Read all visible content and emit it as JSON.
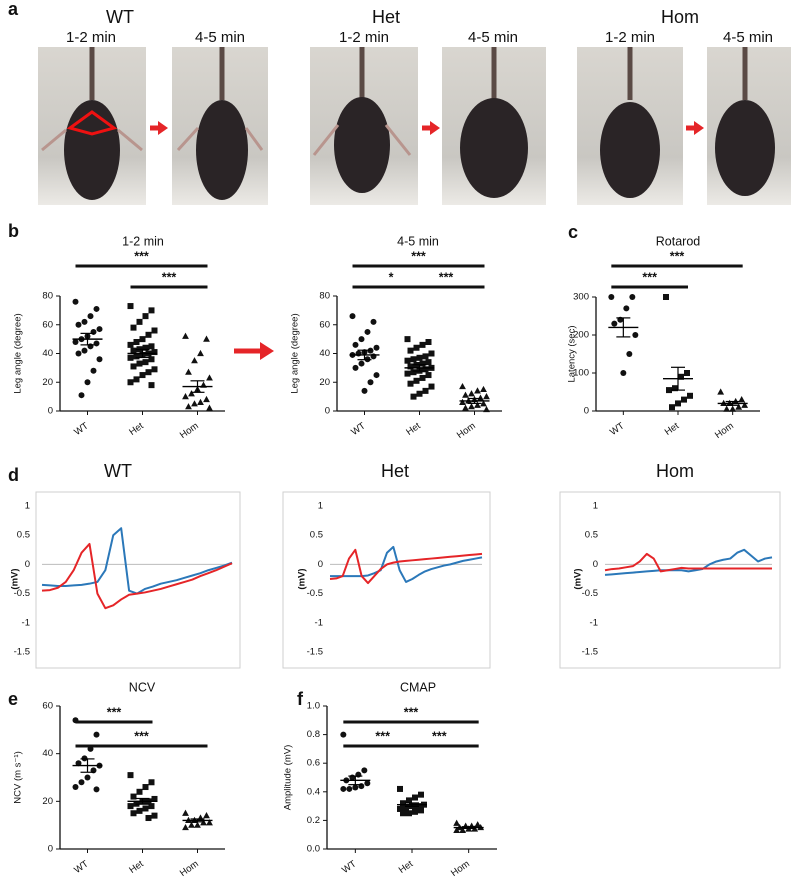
{
  "panel_a": {
    "letter": "a",
    "groups": [
      {
        "title": "WT",
        "times": [
          "1-2 min",
          "4-5 min"
        ]
      },
      {
        "title": "Het",
        "times": [
          "1-2 min",
          "4-5 min"
        ]
      },
      {
        "title": "Hom",
        "times": [
          "1-2 min",
          "4-5 min"
        ]
      }
    ]
  },
  "chart_data": [
    {
      "type": "dot",
      "panel": "b",
      "title": "1-2 min",
      "y_label": "Leg angle (degree)",
      "categories": [
        "WT",
        "Het",
        "Hom"
      ],
      "ylim": [
        0,
        80
      ],
      "yticks": [
        0,
        20,
        40,
        60,
        80
      ],
      "color": "#000000",
      "groups": [
        {
          "marker": "circle",
          "mean": 50,
          "sem": 4,
          "values": [
            76,
            71,
            66,
            62,
            60,
            57,
            55,
            52,
            50,
            48,
            47,
            45,
            42,
            40,
            36,
            28,
            20,
            11
          ]
        },
        {
          "marker": "square",
          "mean": 40,
          "sem": 2.8,
          "values": [
            73,
            70,
            66,
            62,
            58,
            56,
            53,
            50,
            48,
            46,
            45,
            44,
            43,
            42,
            41,
            40,
            39,
            38,
            37,
            36,
            34,
            33,
            31,
            29,
            27,
            25,
            22,
            20,
            18
          ]
        },
        {
          "marker": "triangle",
          "mean": 17,
          "sem": 4,
          "values": [
            52,
            50,
            40,
            35,
            27,
            23,
            18,
            15,
            12,
            10,
            8,
            6,
            5,
            3,
            2
          ]
        }
      ],
      "significance": [
        {
          "from": "WT",
          "to": "Hom",
          "label": "***"
        },
        {
          "from": "Het",
          "to": "Hom",
          "label": "***"
        }
      ]
    },
    {
      "type": "dot",
      "title": "4-5 min",
      "y_label": "Leg angle (degree)",
      "categories": [
        "WT",
        "Het",
        "Hom"
      ],
      "ylim": [
        0,
        80
      ],
      "yticks": [
        0,
        20,
        40,
        60,
        80
      ],
      "color": "#000000",
      "groups": [
        {
          "marker": "circle",
          "mean": 39,
          "sem": 3.3,
          "values": [
            66,
            62,
            55,
            50,
            46,
            44,
            42,
            41,
            40,
            39,
            38,
            36,
            33,
            30,
            25,
            20,
            14
          ]
        },
        {
          "marker": "square",
          "mean": 30,
          "sem": 2.2,
          "values": [
            50,
            48,
            46,
            44,
            42,
            40,
            38,
            37,
            36,
            35,
            34,
            33,
            32,
            31,
            30,
            29,
            28,
            27,
            26,
            25,
            23,
            21,
            19,
            17,
            14,
            12,
            10
          ]
        },
        {
          "marker": "triangle",
          "mean": 7,
          "sem": 1.7,
          "values": [
            17,
            15,
            14,
            12,
            11,
            10,
            9,
            8,
            7,
            6,
            5,
            4,
            3,
            2,
            1
          ]
        }
      ],
      "significance": [
        {
          "from": "WT",
          "to": "Hom",
          "label": "***"
        },
        {
          "from": "WT",
          "to": "Het",
          "label": "*"
        },
        {
          "from": "Het",
          "to": "Hom",
          "label": "***"
        }
      ]
    },
    {
      "type": "dot",
      "panel": "c",
      "title": "Rotarod",
      "y_label": "Latency (sec)",
      "categories": [
        "WT",
        "Het",
        "Hom"
      ],
      "ylim": [
        0,
        300
      ],
      "yticks": [
        0,
        100,
        200,
        300
      ],
      "color": "#000000",
      "groups": [
        {
          "marker": "circle",
          "mean": 220,
          "sem": 25,
          "values": [
            300,
            300,
            270,
            240,
            230,
            200,
            150,
            100
          ]
        },
        {
          "marker": "square",
          "mean": 85,
          "sem": 30,
          "values": [
            300,
            100,
            90,
            60,
            55,
            40,
            30,
            20,
            10
          ]
        },
        {
          "marker": "triangle",
          "mean": 20,
          "sem": 5,
          "values": [
            50,
            30,
            25,
            20,
            20,
            15,
            10,
            5,
            5
          ]
        }
      ],
      "significance": [
        {
          "from": "WT",
          "to": "Hom",
          "label": "***"
        },
        {
          "from": "WT",
          "to": "Het",
          "label": "***"
        }
      ]
    },
    {
      "type": "line",
      "panel": "d",
      "title": "WT",
      "y_label": "(mV)",
      "ylim": [
        -1.5,
        1
      ],
      "yticks": [
        -1.5,
        -1,
        -0.5,
        0,
        0.5,
        1
      ],
      "series": [
        {
          "color": "#2b78b9",
          "values": [
            -0.35,
            -0.36,
            -0.37,
            -0.37,
            -0.36,
            -0.35,
            -0.33,
            -0.3,
            -0.1,
            0.5,
            0.62,
            -0.45,
            -0.5,
            -0.42,
            -0.38,
            -0.33,
            -0.3,
            -0.27,
            -0.23,
            -0.19,
            -0.15,
            -0.1,
            -0.06,
            -0.02,
            0.03
          ]
        },
        {
          "color": "#e52528",
          "values": [
            -0.45,
            -0.44,
            -0.4,
            -0.3,
            -0.1,
            0.2,
            0.35,
            -0.5,
            -0.75,
            -0.7,
            -0.6,
            -0.52,
            -0.5,
            -0.48,
            -0.45,
            -0.42,
            -0.38,
            -0.34,
            -0.3,
            -0.26,
            -0.2,
            -0.15,
            -0.1,
            -0.04,
            0.02
          ]
        }
      ]
    },
    {
      "type": "line",
      "title": "Het",
      "y_label": "(mV)",
      "ylim": [
        -1.5,
        1
      ],
      "yticks": [
        -1.5,
        -1,
        -0.5,
        0,
        0.5,
        1
      ],
      "series": [
        {
          "color": "#2b78b9",
          "values": [
            -0.2,
            -0.2,
            -0.2,
            -0.2,
            -0.2,
            -0.2,
            -0.19,
            -0.15,
            -0.1,
            0.2,
            0.3,
            -0.1,
            -0.3,
            -0.25,
            -0.18,
            -0.12,
            -0.08,
            -0.05,
            -0.02,
            0,
            0.03,
            0.06,
            0.08,
            0.1,
            0.12
          ]
        },
        {
          "color": "#e52528",
          "values": [
            -0.25,
            -0.24,
            -0.2,
            0.1,
            0.25,
            -0.2,
            -0.32,
            -0.2,
            -0.08,
            0,
            0.03,
            0.05,
            0.06,
            0.07,
            0.08,
            0.09,
            0.1,
            0.11,
            0.12,
            0.13,
            0.14,
            0.15,
            0.16,
            0.17,
            0.18
          ]
        }
      ]
    },
    {
      "type": "line",
      "title": "Hom",
      "y_label": "(mV)",
      "ylim": [
        -1.5,
        1
      ],
      "yticks": [
        -1.5,
        -1,
        -0.5,
        0,
        0.5,
        1
      ],
      "series": [
        {
          "color": "#2b78b9",
          "values": [
            -0.18,
            -0.17,
            -0.16,
            -0.15,
            -0.14,
            -0.13,
            -0.12,
            -0.11,
            -0.1,
            -0.1,
            -0.1,
            -0.1,
            -0.12,
            -0.1,
            -0.08,
            0,
            0.05,
            0.08,
            0.1,
            0.2,
            0.25,
            0.15,
            0.05,
            0.1,
            0.12
          ]
        },
        {
          "color": "#e52528",
          "values": [
            -0.1,
            -0.08,
            -0.07,
            -0.05,
            -0.03,
            0.05,
            0.18,
            0.1,
            -0.12,
            -0.1,
            -0.08,
            -0.06,
            -0.07,
            -0.07,
            -0.07,
            -0.07,
            -0.07,
            -0.07,
            -0.07,
            -0.07,
            -0.07,
            -0.07,
            -0.07,
            -0.07,
            -0.07
          ]
        }
      ]
    },
    {
      "type": "dot",
      "panel": "e",
      "title": "NCV",
      "y_label": "NCV (m s⁻¹)",
      "categories": [
        "WT",
        "Het",
        "Hom"
      ],
      "ylim": [
        0,
        60
      ],
      "yticks": [
        0,
        20,
        40,
        60
      ],
      "color": "#000000",
      "groups": [
        {
          "marker": "circle",
          "mean": 35,
          "sem": 2.8,
          "values": [
            54,
            48,
            42,
            38,
            36,
            35,
            33,
            30,
            28,
            26,
            25
          ]
        },
        {
          "marker": "square",
          "mean": 20,
          "sem": 1.2,
          "values": [
            31,
            28,
            26,
            24,
            22,
            21,
            20,
            20,
            19,
            18,
            18,
            17,
            16,
            15,
            14,
            13
          ]
        },
        {
          "marker": "triangle",
          "mean": 12,
          "sem": 0.6,
          "values": [
            15,
            14,
            13,
            12,
            12,
            11,
            11,
            10,
            10,
            9
          ]
        }
      ],
      "significance": [
        {
          "from": "WT",
          "to": "Het",
          "label": "***"
        },
        {
          "from": "WT",
          "to": "Hom",
          "label": "***"
        }
      ]
    },
    {
      "type": "dot",
      "panel": "f",
      "title": "CMAP",
      "y_label": "Amplitude (mV)",
      "categories": [
        "WT",
        "Het",
        "Hom"
      ],
      "ylim": [
        0,
        1
      ],
      "yticks": [
        {
          "value": 0,
          "label": "0.0"
        },
        0.2,
        0.4,
        0.6,
        0.8,
        {
          "value": 1,
          "label": "1.0"
        }
      ],
      "color": "#000000",
      "groups": [
        {
          "marker": "circle",
          "mean": 0.48,
          "sem": 0.03,
          "values": [
            0.8,
            0.55,
            0.52,
            0.5,
            0.48,
            0.46,
            0.44,
            0.43,
            0.42,
            0.42
          ]
        },
        {
          "marker": "square",
          "mean": 0.31,
          "sem": 0.012,
          "values": [
            0.42,
            0.38,
            0.36,
            0.34,
            0.32,
            0.31,
            0.3,
            0.3,
            0.29,
            0.28,
            0.27,
            0.26,
            0.25,
            0.25
          ]
        },
        {
          "marker": "triangle",
          "mean": 0.15,
          "sem": 0.006,
          "values": [
            0.18,
            0.17,
            0.16,
            0.16,
            0.15,
            0.15,
            0.14,
            0.14,
            0.13,
            0.13
          ]
        }
      ],
      "significance": [
        {
          "from": "WT",
          "to": "Hom",
          "label": "***"
        },
        {
          "from": "WT",
          "to": "Het",
          "label": "***"
        },
        {
          "from": "Het",
          "to": "Hom",
          "label": "***"
        }
      ]
    }
  ]
}
